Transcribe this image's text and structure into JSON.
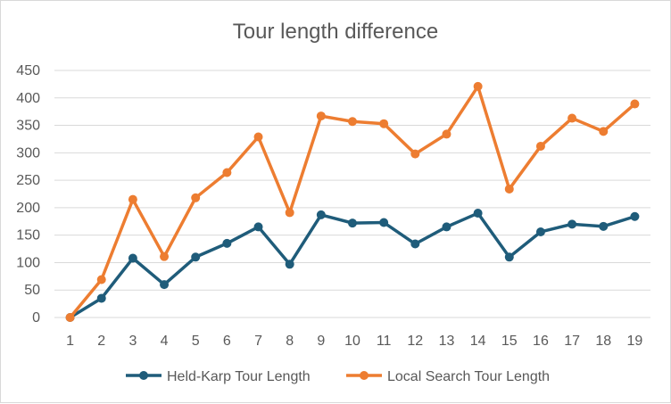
{
  "chart_data": {
    "type": "line",
    "title": "Tour length difference",
    "xlabel": "",
    "ylabel": "",
    "categories": [
      "1",
      "2",
      "3",
      "4",
      "5",
      "6",
      "7",
      "8",
      "9",
      "10",
      "11",
      "12",
      "13",
      "14",
      "15",
      "16",
      "17",
      "18",
      "19"
    ],
    "ylim": [
      0,
      450
    ],
    "yticks": [
      0,
      50,
      100,
      150,
      200,
      250,
      300,
      350,
      400,
      450
    ],
    "grid": true,
    "legend_position": "bottom",
    "series": [
      {
        "name": "Held-Karp Tour Length",
        "color": "#1f5c7a",
        "values": [
          0,
          35,
          108,
          60,
          110,
          135,
          165,
          97,
          187,
          172,
          173,
          134,
          165,
          190,
          110,
          156,
          170,
          166,
          184
        ]
      },
      {
        "name": "Local Search Tour Length",
        "color": "#ed7d31",
        "values": [
          0,
          69,
          215,
          111,
          218,
          264,
          329,
          191,
          367,
          357,
          353,
          298,
          334,
          421,
          234,
          312,
          363,
          339,
          389
        ]
      }
    ]
  }
}
